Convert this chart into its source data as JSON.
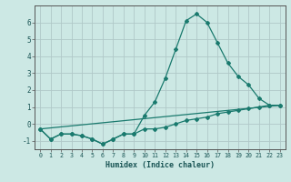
{
  "xlabel": "Humidex (Indice chaleur)",
  "ylabel": "",
  "background_color": "#cce8e4",
  "grid_color": "#b0c8c8",
  "line_color": "#1a7a6e",
  "x": [
    0,
    1,
    2,
    3,
    4,
    5,
    6,
    7,
    8,
    9,
    10,
    11,
    12,
    13,
    14,
    15,
    16,
    17,
    18,
    19,
    20,
    21,
    22,
    23
  ],
  "line1": [
    -0.3,
    -0.9,
    -0.6,
    -0.6,
    -0.7,
    -0.9,
    -1.2,
    -0.9,
    -0.6,
    -0.6,
    0.5,
    1.3,
    2.7,
    4.4,
    6.1,
    6.5,
    6.0,
    4.8,
    3.6,
    2.8,
    2.3,
    1.5,
    1.1,
    1.1
  ],
  "line2": [
    -0.3,
    -0.9,
    -0.6,
    -0.6,
    -0.7,
    -0.9,
    -1.2,
    -0.9,
    -0.6,
    -0.6,
    -0.3,
    -0.3,
    -0.2,
    0.0,
    0.2,
    0.3,
    0.4,
    0.6,
    0.7,
    0.8,
    0.9,
    1.0,
    1.1,
    1.1
  ],
  "line3_x": [
    0,
    23
  ],
  "line3_y": [
    -0.3,
    1.1
  ],
  "ylim": [
    -1.5,
    7.0
  ],
  "xlim": [
    -0.5,
    23.5
  ],
  "yticks": [
    -1,
    0,
    1,
    2,
    3,
    4,
    5,
    6
  ],
  "xticks": [
    0,
    1,
    2,
    3,
    4,
    5,
    6,
    7,
    8,
    9,
    10,
    11,
    12,
    13,
    14,
    15,
    16,
    17,
    18,
    19,
    20,
    21,
    22,
    23
  ]
}
